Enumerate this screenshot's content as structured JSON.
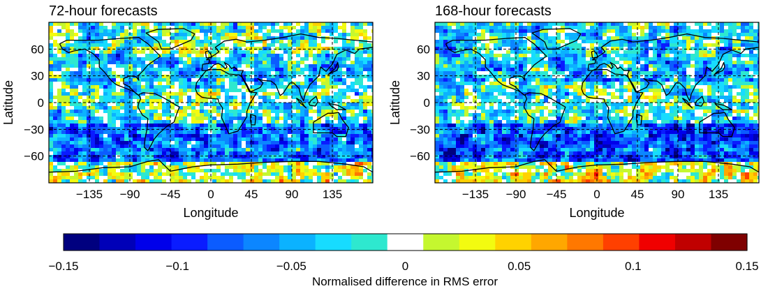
{
  "chart_data": [
    {
      "type": "heatmap",
      "title": "72-hour forecasts",
      "xlabel": "Longitude",
      "ylabel": "Latitude",
      "xlim": [
        -180,
        180
      ],
      "ylim": [
        -90,
        90
      ],
      "xticks": [
        -135,
        -90,
        -45,
        0,
        45,
        90,
        135
      ],
      "yticks": [
        -60,
        -30,
        0,
        30,
        60
      ],
      "xtick_labels": [
        "−135",
        "−90",
        "−45",
        "0",
        "45",
        "90",
        "135"
      ],
      "ytick_labels": [
        "−60",
        "−30",
        "0",
        "30",
        "60"
      ],
      "grid": "dashed",
      "field_seed": 7,
      "regional_means": {
        "high_lat_north": -0.01,
        "north_mid": -0.04,
        "tropics": -0.02,
        "south_mid": -0.07,
        "antarctic": 0.01
      }
    },
    {
      "type": "heatmap",
      "title": "168-hour forecasts",
      "xlabel": "Longitude",
      "ylabel": "Latitude",
      "xlim": [
        -180,
        180
      ],
      "ylim": [
        -90,
        90
      ],
      "xticks": [
        -135,
        -90,
        -45,
        0,
        45,
        90,
        135
      ],
      "yticks": [
        -60,
        -30,
        0,
        30,
        60
      ],
      "xtick_labels": [
        "−135",
        "−90",
        "−45",
        "0",
        "45",
        "90",
        "135"
      ],
      "ytick_labels": [
        "−60",
        "−30",
        "0",
        "30",
        "60"
      ],
      "grid": "dashed",
      "field_seed": 31,
      "regional_means": {
        "high_lat_north": -0.03,
        "north_mid": -0.04,
        "tropics": -0.02,
        "south_mid": -0.08,
        "antarctic": 0.02
      }
    }
  ],
  "colorbar": {
    "label": "Normalised difference in RMS error",
    "min": -0.15,
    "max": 0.15,
    "ticks": [
      -0.15,
      -0.1,
      -0.05,
      0,
      0.05,
      0.1,
      0.15
    ],
    "tick_labels": [
      "−0.15",
      "−0.1",
      "−0.05",
      "0",
      "0.05",
      "0.1",
      "0.15"
    ],
    "colors": [
      "#00007f",
      "#0000b8",
      "#0000ea",
      "#0a1cff",
      "#0b5cff",
      "#0c86ff",
      "#0bb2ff",
      "#17dcff",
      "#2ee8cf",
      "#ffffff",
      "#c5f72f",
      "#f3fb10",
      "#ffd200",
      "#ffa700",
      "#ff7800",
      "#ff4000",
      "#f00000",
      "#c00000",
      "#7f0000"
    ]
  }
}
